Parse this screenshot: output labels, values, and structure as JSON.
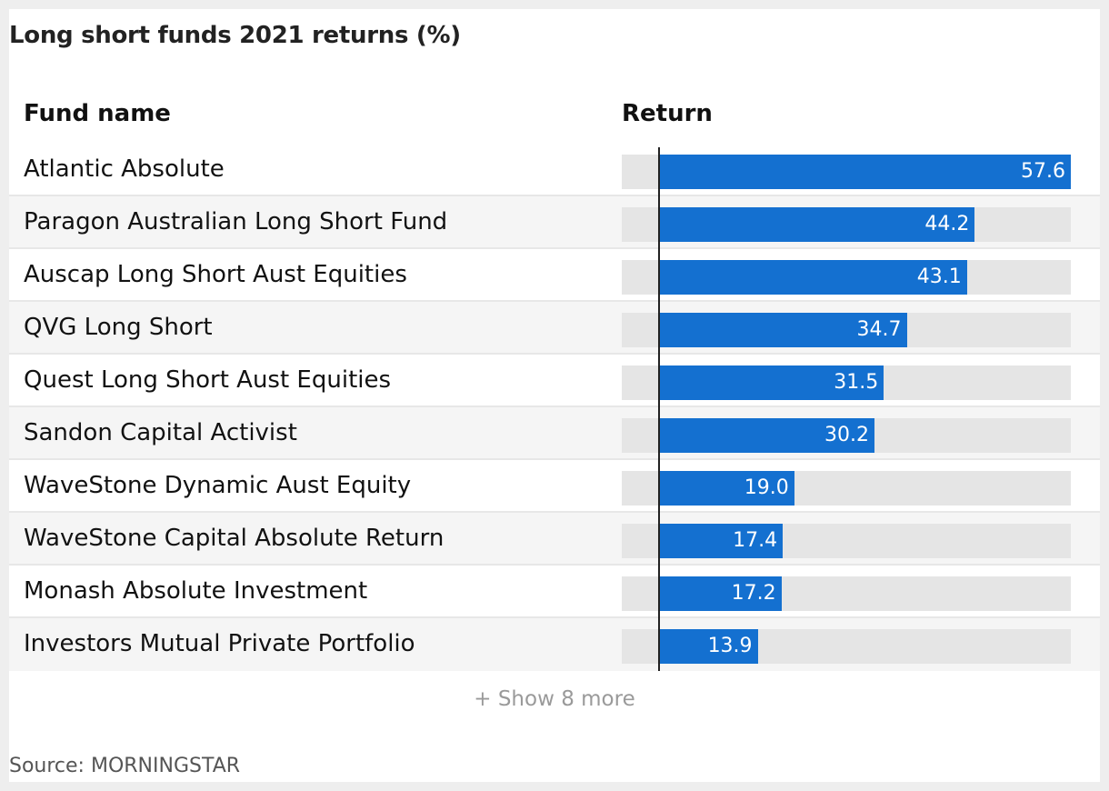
{
  "chart_data": {
    "type": "bar",
    "title": "Long short funds 2021 returns (%)",
    "column_headers": {
      "name": "Fund name",
      "value": "Return"
    },
    "categories": [
      "Atlantic Absolute",
      "Paragon Australian Long Short Fund",
      "Auscap Long Short Aust Equities",
      "QVG Long Short",
      "Quest Long Short Aust Equities",
      "Sandon Capital Activist",
      "WaveStone Dynamic Aust Equity",
      "WaveStone Capital Absolute Return",
      "Monash Absolute Investment",
      "Investors Mutual Private Portfolio"
    ],
    "values": [
      57.6,
      44.2,
      43.1,
      34.7,
      31.5,
      30.2,
      19.0,
      17.4,
      17.2,
      13.9
    ],
    "value_labels": [
      "57.6",
      "44.2",
      "43.1",
      "34.7",
      "31.5",
      "30.2",
      "19.0",
      "17.4",
      "17.2",
      "13.9"
    ],
    "xlim": [
      -5.1,
      57.6
    ],
    "bar_color": "#1470d0",
    "track_color": "#e5e5e5"
  },
  "footer": {
    "show_more_label": "+ Show 8 more",
    "source": "Source: MORNINGSTAR"
  }
}
